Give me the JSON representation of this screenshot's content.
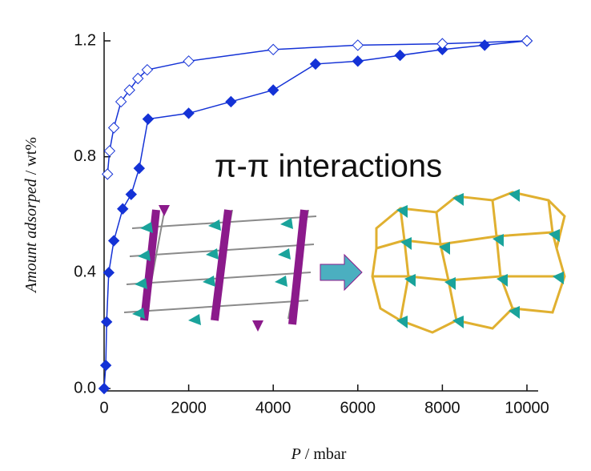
{
  "chart_data": {
    "type": "line",
    "annotation": "π-π interactions",
    "x_label": {
      "italic": "P",
      "rest": " / mbar"
    },
    "y_label": {
      "italic": "Amount adsorped",
      "rest": " / wt%"
    },
    "xlim": [
      0,
      10000
    ],
    "xticks": [
      0,
      2000,
      4000,
      6000,
      8000,
      10000
    ],
    "ylim": [
      0,
      1.2
    ],
    "yticks": [
      {
        "value": 0,
        "label": "0.0"
      },
      0.4,
      0.8,
      1.2
    ],
    "series": [
      {
        "color": "#1432d6",
        "marker": "filled",
        "x": [
          0,
          40,
          60,
          110,
          230,
          440,
          640,
          830,
          1040,
          2000,
          3000,
          4000,
          5000,
          6000,
          7000,
          8000,
          9000,
          10000
        ],
        "values": [
          0,
          0.08,
          0.23,
          0.4,
          0.51,
          0.62,
          0.67,
          0.76,
          0.93,
          0.95,
          0.99,
          1.03,
          1.12,
          1.13,
          1.15,
          1.17,
          1.185,
          1.2
        ]
      },
      {
        "color": "#1432d6",
        "marker": "open",
        "x": [
          80,
          130,
          230,
          400,
          600,
          800,
          1020,
          2000,
          4000,
          6000,
          8000,
          10000
        ],
        "values": [
          0.74,
          0.82,
          0.9,
          0.99,
          1.03,
          1.07,
          1.1,
          1.13,
          1.17,
          1.185,
          1.19,
          1.2
        ]
      }
    ]
  }
}
